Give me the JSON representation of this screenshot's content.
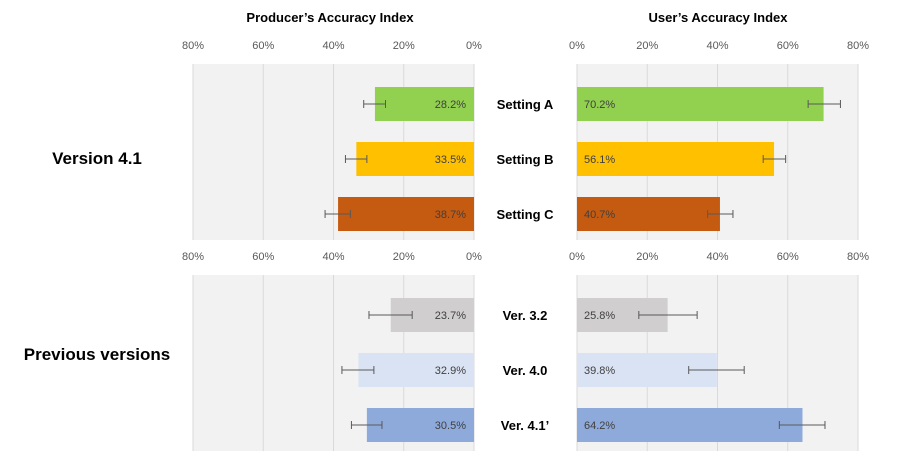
{
  "chart_data": {
    "type": "bar",
    "title_left": "Producer’s Accuracy Index",
    "title_right": "User’s Accuracy Index",
    "tick_labels_left": [
      "80%",
      "60%",
      "40%",
      "20%",
      "0%"
    ],
    "tick_labels_right": [
      "0%",
      "20%",
      "40%",
      "60%",
      "80%"
    ],
    "xlim": [
      0,
      80
    ],
    "groups": [
      {
        "label": "Version 4.1",
        "categories": [
          "Setting A",
          "Setting B",
          "Setting C"
        ],
        "colors": [
          "#92d050",
          "#ffc000",
          "#c55a11"
        ],
        "producer": {
          "values": [
            28.2,
            33.5,
            38.7
          ],
          "value_labels": [
            "28.2%",
            "33.5%",
            "38.7%"
          ],
          "error_low": [
            25.2,
            30.5,
            35.2
          ],
          "error_high": [
            31.4,
            36.6,
            42.4
          ]
        },
        "user": {
          "values": [
            70.2,
            56.1,
            40.7
          ],
          "value_labels": [
            "70.2%",
            "56.1%",
            "40.7%"
          ],
          "error_low": [
            65.8,
            53.0,
            37.2
          ],
          "error_high": [
            75.0,
            59.4,
            44.4
          ]
        }
      },
      {
        "label": "Previous versions",
        "categories": [
          "Ver. 3.2",
          "Ver. 4.0",
          "Ver. 4.1’"
        ],
        "colors": [
          "#d0cece",
          "#dae3f3",
          "#8eaadb"
        ],
        "producer": {
          "values": [
            23.7,
            32.9,
            30.5
          ],
          "value_labels": [
            "23.7%",
            "32.9%",
            "30.5%"
          ],
          "error_low": [
            17.6,
            28.5,
            26.2
          ],
          "error_high": [
            29.9,
            37.6,
            34.9
          ]
        },
        "user": {
          "values": [
            25.8,
            39.8,
            64.2
          ],
          "value_labels": [
            "25.8%",
            "39.8%",
            "64.2%"
          ],
          "error_low": [
            17.6,
            31.8,
            57.6
          ],
          "error_high": [
            34.2,
            47.6,
            70.6
          ]
        }
      }
    ]
  }
}
